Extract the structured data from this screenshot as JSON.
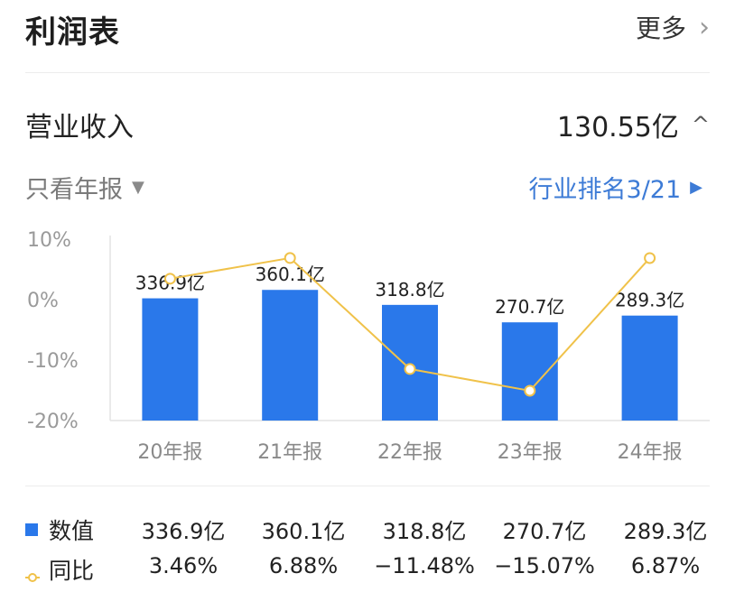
{
  "header": {
    "title": "利润表",
    "more_label": "更多",
    "more_icon": "chevron-right"
  },
  "metric": {
    "label": "营业收入",
    "value": "130.55亿",
    "toggle_icon": "chevron-up"
  },
  "filter": {
    "label": "只看年报",
    "icon": "triangle-down"
  },
  "rank": {
    "label": "行业排名3/21",
    "icon": "triangle-right"
  },
  "colors": {
    "bar": "#2a78ea",
    "line": "#f0c24a",
    "accent": "#3d7bd6"
  },
  "chart_data": {
    "type": "bar",
    "categories": [
      "20年报",
      "21年报",
      "22年报",
      "23年报",
      "24年报"
    ],
    "series": [
      {
        "name": "数值",
        "type": "bar",
        "values": [
          336.9,
          360.1,
          318.8,
          270.7,
          289.3
        ],
        "labels": [
          "336.9亿",
          "360.1亿",
          "318.8亿",
          "270.7亿",
          "289.3亿"
        ]
      },
      {
        "name": "同比",
        "type": "line",
        "values": [
          3.46,
          6.88,
          -11.48,
          -15.07,
          6.87
        ],
        "labels": [
          "3.46%",
          "6.88%",
          "−11.48%",
          "−15.07%",
          "6.87%"
        ]
      }
    ],
    "y_ticks": [
      "10%",
      "0%",
      "-10%",
      "-20%"
    ],
    "y_tick_values": [
      10,
      0,
      -10,
      -20
    ],
    "ylim_pct": [
      -20,
      10
    ],
    "ylim_value": [
      0,
      500
    ],
    "grid": false
  },
  "legend": {
    "rows": [
      {
        "label": "数值",
        "values": [
          "336.9亿",
          "360.1亿",
          "318.8亿",
          "270.7亿",
          "289.3亿"
        ]
      },
      {
        "label": "同比",
        "values": [
          "3.46%",
          "6.88%",
          "−11.48%",
          "−15.07%",
          "6.87%"
        ]
      }
    ]
  }
}
